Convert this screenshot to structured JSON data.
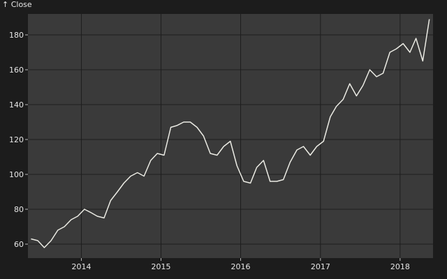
{
  "chart_data": {
    "type": "line",
    "ylabel": "↑ Close",
    "ylim": [
      52,
      192
    ],
    "xlim": [
      "2013-05-01",
      "2018-06-01"
    ],
    "yticks": [
      60,
      80,
      100,
      120,
      140,
      160,
      180
    ],
    "xticks": [
      "2014",
      "2015",
      "2016",
      "2017",
      "2018"
    ],
    "grid": true,
    "colors": {
      "background": "#1c1c1c",
      "plot": "#3a3a3a",
      "grid": "#1e1e1e",
      "line": "#ebebe4"
    },
    "series": [
      {
        "x": [
          "2013-05-15",
          "2013-06-15",
          "2013-07-15",
          "2013-08-15",
          "2013-09-15",
          "2013-10-15",
          "2013-11-15",
          "2013-12-15",
          "2014-01-15",
          "2014-02-15",
          "2014-03-15",
          "2014-04-15",
          "2014-05-15",
          "2014-06-15",
          "2014-07-15",
          "2014-08-15",
          "2014-09-15",
          "2014-10-15",
          "2014-11-15",
          "2014-12-15",
          "2015-01-15",
          "2015-02-15",
          "2015-03-15",
          "2015-04-15",
          "2015-05-15",
          "2015-06-15",
          "2015-07-15",
          "2015-08-15",
          "2015-09-15",
          "2015-10-15",
          "2015-11-15",
          "2015-12-15",
          "2016-01-15",
          "2016-02-15",
          "2016-03-15",
          "2016-04-15",
          "2016-05-15",
          "2016-06-15",
          "2016-07-15",
          "2016-08-15",
          "2016-09-15",
          "2016-10-15",
          "2016-11-15",
          "2016-12-15",
          "2017-01-15",
          "2017-02-15",
          "2017-03-15",
          "2017-04-15",
          "2017-05-15",
          "2017-06-15",
          "2017-07-15",
          "2017-08-15",
          "2017-09-15",
          "2017-10-15",
          "2017-11-15",
          "2017-12-15",
          "2018-01-15",
          "2018-02-15",
          "2018-03-15",
          "2018-04-15",
          "2018-05-15"
        ],
        "values": [
          63,
          62,
          58,
          62,
          68,
          70,
          74,
          76,
          80,
          78,
          76,
          75,
          85,
          90,
          95,
          99,
          101,
          99,
          108,
          112,
          111,
          127,
          128,
          130,
          130,
          127,
          122,
          112,
          111,
          116,
          119,
          105,
          96,
          95,
          104,
          108,
          96,
          96,
          97,
          107,
          114,
          116,
          111,
          116,
          119,
          133,
          139,
          143,
          152,
          145,
          151,
          160,
          156,
          158,
          170,
          172,
          175,
          170,
          178,
          165,
          189
        ]
      }
    ]
  }
}
